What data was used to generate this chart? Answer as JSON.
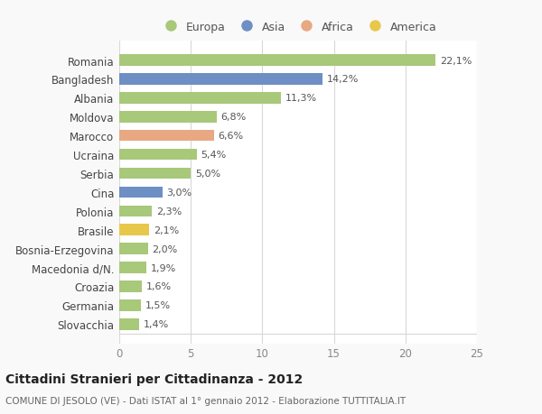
{
  "countries": [
    "Romania",
    "Bangladesh",
    "Albania",
    "Moldova",
    "Marocco",
    "Ucraina",
    "Serbia",
    "Cina",
    "Polonia",
    "Brasile",
    "Bosnia-Erzegovina",
    "Macedonia d/N.",
    "Croazia",
    "Germania",
    "Slovacchia"
  ],
  "values": [
    22.1,
    14.2,
    11.3,
    6.8,
    6.6,
    5.4,
    5.0,
    3.0,
    2.3,
    2.1,
    2.0,
    1.9,
    1.6,
    1.5,
    1.4
  ],
  "labels": [
    "22,1%",
    "14,2%",
    "11,3%",
    "6,8%",
    "6,6%",
    "5,4%",
    "5,0%",
    "3,0%",
    "2,3%",
    "2,1%",
    "2,0%",
    "1,9%",
    "1,6%",
    "1,5%",
    "1,4%"
  ],
  "colors": [
    "#a8c87a",
    "#6e8fc4",
    "#a8c87a",
    "#a8c87a",
    "#e8a882",
    "#a8c87a",
    "#a8c87a",
    "#6e8fc4",
    "#a8c87a",
    "#e8c84a",
    "#a8c87a",
    "#a8c87a",
    "#a8c87a",
    "#a8c87a",
    "#a8c87a"
  ],
  "legend_labels": [
    "Europa",
    "Asia",
    "Africa",
    "America"
  ],
  "legend_colors": [
    "#a8c87a",
    "#6e8fc4",
    "#e8a882",
    "#e8c84a"
  ],
  "title": "Cittadini Stranieri per Cittadinanza - 2012",
  "subtitle": "COMUNE DI JESOLO (VE) - Dati ISTAT al 1° gennaio 2012 - Elaborazione TUTTITALIA.IT",
  "xlim": [
    0,
    25
  ],
  "xticks": [
    0,
    5,
    10,
    15,
    20,
    25
  ],
  "background_color": "#f9f9f9",
  "bar_background": "#ffffff",
  "grid_color": "#d8d8d8"
}
